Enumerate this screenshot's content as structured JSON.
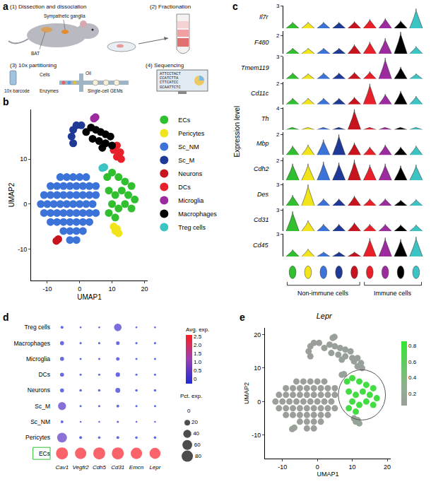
{
  "panel_labels": [
    "a",
    "b",
    "c",
    "d",
    "e"
  ],
  "schematic": {
    "steps": [
      {
        "label": "(1) Dissection and dissociation",
        "notes": [
          "Sympathetic ganglia",
          "BAT"
        ]
      },
      {
        "label": "(2) Fractionation",
        "notes": []
      },
      {
        "label": "(3) 10x partitioning",
        "notes": [
          "10x barcode",
          "Cells",
          "Enzymes",
          "Oil",
          "Single-cell GEMs"
        ]
      },
      {
        "label": "(4) Sequencing",
        "notes": [
          "ATTCCTACT",
          "CCATCTTA",
          "CTTCATCC",
          "GCAATTCTC"
        ]
      }
    ]
  },
  "chart_data": [
    {
      "type": "scatter",
      "xlabel": "UMAP1",
      "ylabel": "UMAP2",
      "xlim": [
        -15,
        21
      ],
      "ylim": [
        -17,
        21
      ],
      "xticks": [
        -10,
        0,
        10,
        20
      ],
      "yticks": [
        -10,
        0,
        10
      ],
      "grid": false,
      "legend": "right",
      "series": [
        {
          "name": "ECs",
          "color": "#2fbf2f",
          "x": [
            8.5,
            10,
            12,
            14,
            16,
            9,
            11,
            13,
            15,
            17,
            10,
            12,
            14,
            16,
            9,
            11
          ],
          "y": [
            6,
            7,
            6,
            5,
            4,
            3,
            2,
            3,
            2,
            1,
            0,
            -1,
            0,
            -1,
            -2,
            -3
          ]
        },
        {
          "name": "Pericytes",
          "color": "#f2e41a",
          "x": [
            10.5,
            11.5,
            12,
            11
          ],
          "y": [
            -5,
            -5.5,
            -6.5,
            -6
          ]
        },
        {
          "name": "Sc_NM",
          "color": "#3b73d9",
          "x": [
            -6,
            -4,
            -2,
            0,
            2,
            -9,
            -7,
            -5,
            -3,
            -1,
            1,
            3,
            5,
            -11,
            -9,
            -7,
            -5,
            -3,
            -1,
            1,
            3,
            5,
            -12,
            -10,
            -8,
            -6,
            -4,
            -2,
            0,
            2,
            4,
            -11,
            -9,
            -7,
            -5,
            -3,
            -1,
            1,
            3,
            5,
            -9,
            -7,
            -5,
            -3,
            -1,
            1,
            3,
            -5,
            -3,
            -1,
            1,
            -3,
            -1
          ],
          "y": [
            6,
            6,
            6,
            6,
            6,
            4,
            4,
            4,
            4,
            4,
            4,
            4,
            4,
            2,
            2,
            2,
            2,
            2,
            2,
            2,
            2,
            2,
            0,
            0,
            0,
            0,
            0,
            0,
            0,
            0,
            0,
            -2,
            -2,
            -2,
            -2,
            -2,
            -2,
            -2,
            -2,
            -2,
            -4,
            -4,
            -4,
            -4,
            -4,
            -4,
            -4,
            -6,
            -6,
            -6,
            -6,
            -8,
            -8
          ]
        },
        {
          "name": "Sc_M",
          "color": "#1f3a96",
          "x": [
            -2,
            -2.5,
            -2,
            -1,
            0.5
          ],
          "y": [
            13.5,
            15,
            16.5,
            17.5,
            17.5
          ]
        },
        {
          "name": "Neurons",
          "color": "#c8141e",
          "x": [
            -7.2,
            -6.6
          ],
          "y": [
            -8.2,
            -7.8
          ]
        },
        {
          "name": "DCs",
          "color": "#e8202a",
          "x": [
            10.5,
            11.5,
            12.5,
            11.5,
            12.8
          ],
          "y": [
            12,
            13,
            11.5,
            10.5,
            10
          ]
        },
        {
          "name": "Microglia",
          "color": "#9c2ba0",
          "x": [
            4.4,
            4.9
          ],
          "y": [
            19,
            19.3
          ]
        },
        {
          "name": "Macrophages",
          "color": "#000000",
          "x": [
            2,
            3.5,
            5,
            6.5,
            8,
            9.5,
            4,
            6,
            8,
            10,
            7
          ],
          "y": [
            16,
            17,
            16.5,
            16,
            15.5,
            15,
            14.5,
            14,
            13.5,
            13,
            12.5
          ]
        },
        {
          "name": "Treg cells",
          "color": "#3cc3c3",
          "x": [
            7,
            7.6
          ],
          "y": [
            8,
            8.2
          ]
        }
      ]
    },
    {
      "type": "violin",
      "ylabel": "Expression level",
      "categories": [
        null,
        null,
        null,
        null,
        null,
        null,
        null,
        null,
        null
      ],
      "colors": [
        "#2fbf2f",
        "#f2e41a",
        "#3b73d9",
        "#1f3a96",
        "#c8141e",
        "#e8202a",
        "#9c2ba0",
        "#000000",
        "#3cc3c3"
      ],
      "groups": [
        {
          "label": "Non-immune cells",
          "members": [
            0,
            1,
            2,
            3,
            4
          ]
        },
        {
          "label": "Immune cells",
          "members": [
            5,
            6,
            7,
            8
          ]
        }
      ],
      "series": [
        {
          "name": "Il7r",
          "ylim": [
            0,
            3
          ],
          "yticks": [
            3
          ],
          "values": [
            0.8,
            0.8,
            0.8,
            0.8,
            0.9,
            1.2,
            1.3,
            1.0,
            2.6
          ]
        },
        {
          "name": "F480",
          "ylim": [
            0,
            2.5
          ],
          "yticks": [
            2
          ],
          "values": [
            0.6,
            0.6,
            0.6,
            0.6,
            1.0,
            1.3,
            1.7,
            2.4,
            0.8
          ]
        },
        {
          "name": "Tmem119",
          "ylim": [
            0,
            3
          ],
          "yticks": [
            3
          ],
          "values": [
            0.8,
            0.7,
            0.8,
            0.8,
            0.9,
            1.0,
            2.8,
            1.6,
            0.7
          ]
        },
        {
          "name": "Cd11c",
          "ylim": [
            0,
            2.2
          ],
          "yticks": [
            2
          ],
          "values": [
            0.6,
            0.6,
            0.6,
            0.6,
            0.7,
            2.0,
            1.0,
            1.3,
            0.8
          ]
        },
        {
          "name": "Th",
          "ylim": [
            0,
            4.2
          ],
          "yticks": [
            4
          ],
          "values": [
            0.5,
            0.5,
            0.5,
            0.5,
            3.8,
            0.5,
            0.5,
            0.5,
            0.5
          ]
        },
        {
          "name": "Mbp",
          "ylim": [
            0,
            2.2
          ],
          "yticks": [
            2
          ],
          "values": [
            0.9,
            1.0,
            1.5,
            2.0,
            1.2,
            0.8,
            1.0,
            0.8,
            0.9
          ]
        },
        {
          "name": "Cdh2",
          "ylim": [
            0,
            2.3
          ],
          "yticks": [
            2
          ],
          "values": [
            1.7,
            1.7,
            1.9,
            1.8,
            2.1,
            1.6,
            1.7,
            1.5,
            1.6
          ]
        },
        {
          "name": "Des",
          "ylim": [
            0,
            3.2
          ],
          "yticks": [
            3
          ],
          "values": [
            1.5,
            3.0,
            1.0,
            1.0,
            1.4,
            1.0,
            1.0,
            0.8,
            0.9
          ]
        },
        {
          "name": "Cd31",
          "ylim": [
            0,
            3.2
          ],
          "yticks": [
            3
          ],
          "values": [
            2.8,
            1.5,
            1.0,
            1.0,
            1.2,
            1.0,
            1.0,
            0.9,
            0.9
          ]
        },
        {
          "name": "Cd45",
          "ylim": [
            0,
            3
          ],
          "yticks": [
            3
          ],
          "values": [
            0.9,
            1.0,
            0.6,
            0.6,
            0.6,
            2.4,
            2.5,
            2.3,
            2.6
          ]
        }
      ]
    },
    {
      "type": "dot",
      "categories": [
        "Cav1",
        "Vegfr2",
        "Cdh5",
        "Cd31",
        "Emcn",
        "Lepr"
      ],
      "color_title": "Avg. exp.",
      "color_range": [
        -0.3,
        2.6
      ],
      "color_ticks": [
        0,
        0.5,
        {
          "value": 1,
          "label": "1.0"
        },
        1.5,
        {
          "value": 2,
          "label": "2.0"
        },
        2.5
      ],
      "size_title": "Pct. exp.",
      "size_ticks": [
        0,
        20,
        40,
        60,
        80
      ],
      "series": [
        {
          "name": "Treg cells",
          "values": [
            -0.3,
            -0.3,
            -0.3,
            0.1,
            -0.3,
            -0.3
          ],
          "pct": [
            5,
            2,
            2,
            35,
            2,
            2
          ]
        },
        {
          "name": "Macrophages",
          "values": [
            -0.2,
            -0.3,
            -0.3,
            -0.2,
            -0.3,
            -0.3
          ],
          "pct": [
            10,
            3,
            3,
            8,
            3,
            3
          ]
        },
        {
          "name": "Microglia",
          "values": [
            -0.2,
            -0.3,
            -0.3,
            -0.2,
            -0.3,
            -0.3
          ],
          "pct": [
            10,
            3,
            3,
            8,
            3,
            3
          ]
        },
        {
          "name": "DCs",
          "values": [
            -0.2,
            -0.3,
            -0.3,
            -0.2,
            -0.3,
            -0.3
          ],
          "pct": [
            10,
            3,
            3,
            12,
            3,
            3
          ]
        },
        {
          "name": "Neurons",
          "values": [
            -0.2,
            -0.3,
            -0.3,
            -0.1,
            -0.3,
            -0.3
          ],
          "pct": [
            10,
            4,
            4,
            15,
            4,
            4
          ]
        },
        {
          "name": "Sc_M",
          "values": [
            0.3,
            -0.3,
            -0.3,
            -0.3,
            -0.3,
            -0.3
          ],
          "pct": [
            40,
            3,
            3,
            5,
            3,
            3
          ]
        },
        {
          "name": "Sc_NM",
          "values": [
            -0.3,
            -0.3,
            -0.3,
            -0.3,
            -0.3,
            -0.3
          ],
          "pct": [
            5,
            2,
            2,
            3,
            2,
            2
          ]
        },
        {
          "name": "Pericytes",
          "values": [
            0.4,
            -0.3,
            -0.3,
            -0.3,
            -0.3,
            -0.3
          ],
          "pct": [
            60,
            5,
            4,
            5,
            4,
            4
          ]
        },
        {
          "name": "ECs",
          "values": [
            2.5,
            2.5,
            2.5,
            2.5,
            2.5,
            2.5
          ],
          "pct": [
            90,
            80,
            90,
            90,
            80,
            75
          ]
        }
      ]
    },
    {
      "type": "scatter",
      "title": "Lepr",
      "xlabel": "UMAP1",
      "ylabel": "UMAP2",
      "xlim": [
        -15,
        21
      ],
      "ylim": [
        -17,
        22
      ],
      "xticks": [
        -10,
        0,
        10,
        20
      ],
      "yticks": [
        -10,
        0,
        10,
        20
      ],
      "grid": false,
      "color_range": [
        0.05,
        0.85
      ],
      "color_ticks": [
        0.2,
        0.4,
        0.6,
        0.8
      ],
      "series": [
        {
          "value": 0.06,
          "x": [
            -6,
            -4,
            -2,
            0,
            2,
            -9,
            -7,
            -5,
            -3,
            -1,
            1,
            3,
            5,
            -11,
            -9,
            -7,
            -5,
            -3,
            -1,
            1,
            3,
            5,
            -12,
            -10,
            -8,
            -6,
            -4,
            -2,
            0,
            2,
            4,
            -11,
            -9,
            -7,
            -5,
            -3,
            -1,
            1,
            3,
            5,
            -9,
            -7,
            -5,
            -3,
            -1,
            1,
            3,
            -5,
            -3,
            -1,
            1,
            -3,
            -1
          ],
          "y": [
            6,
            6,
            6,
            6,
            6,
            4,
            4,
            4,
            4,
            4,
            4,
            4,
            4,
            2,
            2,
            2,
            2,
            2,
            2,
            2,
            2,
            2,
            0,
            0,
            0,
            0,
            0,
            0,
            0,
            0,
            0,
            -2,
            -2,
            -2,
            -2,
            -2,
            -2,
            -2,
            -2,
            -2,
            -4,
            -4,
            -4,
            -4,
            -4,
            -4,
            -4,
            -6,
            -6,
            -6,
            -6,
            -8,
            -8
          ]
        },
        {
          "value": 0.06,
          "x": [
            -2,
            -2.5,
            -2,
            -1,
            0.5
          ],
          "y": [
            13.5,
            15,
            16.5,
            17.5,
            17.5
          ]
        },
        {
          "value": 0.1,
          "x": [
            -7.2,
            -6.6
          ],
          "y": [
            -8.2,
            -7.8
          ]
        },
        {
          "value": 0.08,
          "x": [
            10.5,
            11.5,
            12.5,
            11.5,
            12.8
          ],
          "y": [
            12,
            13,
            11.5,
            10.5,
            10
          ]
        },
        {
          "value": 0.07,
          "x": [
            4.4,
            4.9
          ],
          "y": [
            19,
            19.3
          ]
        },
        {
          "value": 0.07,
          "x": [
            2,
            3.5,
            5,
            6.5,
            8,
            9.5,
            4,
            6,
            8,
            10,
            7
          ],
          "y": [
            16,
            17,
            16.5,
            16,
            15.5,
            15,
            14.5,
            14,
            13.5,
            13,
            12.5
          ]
        },
        {
          "value": 0.1,
          "x": [
            7,
            7.6
          ],
          "y": [
            8,
            8.2
          ]
        },
        {
          "value": 0.12,
          "x": [
            10.5,
            11.5,
            12,
            11
          ],
          "y": [
            -5,
            -5.5,
            -6.5,
            -6
          ]
        },
        {
          "value": 0.75,
          "x": [
            8.5,
            10,
            12,
            14,
            16,
            9,
            11,
            13,
            15,
            17,
            10,
            12,
            14,
            16,
            9,
            11
          ],
          "y": [
            6,
            7,
            6,
            5,
            4,
            3,
            2,
            3,
            2,
            1,
            0,
            -1,
            0,
            -1,
            -2,
            -3
          ]
        }
      ]
    }
  ]
}
